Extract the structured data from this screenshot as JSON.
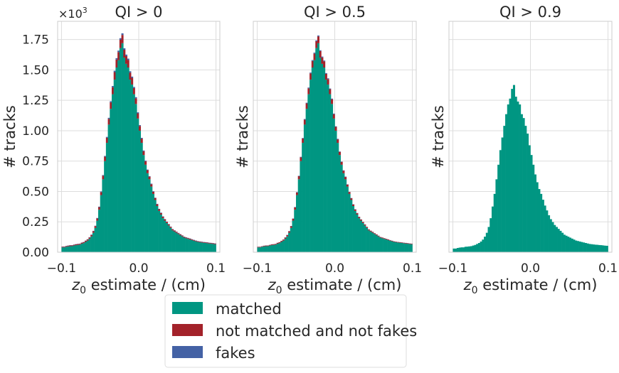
{
  "chart_data": {
    "type": "bar",
    "stacked": true,
    "grid": true,
    "legend_placement": "bottom-center",
    "colors": {
      "matched": "#009682",
      "not_matched": "#A3222A",
      "fakes": "#4462A5"
    },
    "legend": [
      "matched",
      "not matched and not fakes",
      "fakes"
    ],
    "y_multiplier_label": "×10",
    "y_multiplier_exp": "3",
    "ylabel": "# tracks",
    "xlabel_symbol": "z",
    "xlabel_sub": "0",
    "xlabel_rest": " estimate / (cm)",
    "xlim": [
      -0.105,
      0.105
    ],
    "ylim": [
      0,
      1.9
    ],
    "xticks": [
      "−0.1",
      "0.0",
      "0.1"
    ],
    "yticks": [
      "0.00",
      "0.25",
      "0.50",
      "0.75",
      "1.00",
      "1.25",
      "1.50",
      "1.75"
    ],
    "bin_range": [
      -0.1,
      0.1
    ],
    "bins": 80,
    "panels": [
      {
        "title": "QI > 0",
        "series": [
          {
            "name": "matched",
            "values": [
              0.04,
              0.04,
              0.045,
              0.048,
              0.05,
              0.05,
              0.055,
              0.058,
              0.06,
              0.062,
              0.07,
              0.075,
              0.085,
              0.095,
              0.11,
              0.13,
              0.16,
              0.2,
              0.26,
              0.35,
              0.47,
              0.6,
              0.75,
              0.9,
              1.05,
              1.18,
              1.3,
              1.42,
              1.52,
              1.58,
              1.68,
              1.72,
              1.6,
              1.55,
              1.52,
              1.42,
              1.38,
              1.3,
              1.22,
              1.1,
              1.0,
              0.9,
              0.8,
              0.72,
              0.65,
              0.6,
              0.54,
              0.48,
              0.43,
              0.38,
              0.34,
              0.31,
              0.28,
              0.26,
              0.24,
              0.22,
              0.2,
              0.18,
              0.17,
              0.16,
              0.15,
              0.14,
              0.13,
              0.12,
              0.115,
              0.11,
              0.105,
              0.1,
              0.095,
              0.09,
              0.085,
              0.082,
              0.08,
              0.078,
              0.076,
              0.074,
              0.072,
              0.07,
              0.068,
              0.066
            ]
          },
          {
            "name": "not matched and not fakes",
            "values": [
              0.005,
              0.005,
              0.005,
              0.006,
              0.006,
              0.006,
              0.006,
              0.007,
              0.007,
              0.007,
              0.008,
              0.008,
              0.009,
              0.01,
              0.011,
              0.012,
              0.013,
              0.015,
              0.018,
              0.021,
              0.025,
              0.03,
              0.036,
              0.042,
              0.048,
              0.053,
              0.058,
              0.062,
              0.065,
              0.067,
              0.068,
              0.068,
              0.066,
              0.064,
              0.062,
              0.058,
              0.055,
              0.051,
              0.047,
              0.043,
              0.039,
              0.035,
              0.031,
              0.028,
              0.025,
              0.022,
              0.02,
              0.018,
              0.016,
              0.015,
              0.014,
              0.013,
              0.012,
              0.011,
              0.01,
              0.01,
              0.009,
              0.009,
              0.008,
              0.008,
              0.007,
              0.007,
              0.007,
              0.006,
              0.006,
              0.006,
              0.006,
              0.005,
              0.005,
              0.005,
              0.005,
              0.005,
              0.005,
              0.005,
              0.005,
              0.005,
              0.005,
              0.005,
              0.005,
              0.005
            ]
          },
          {
            "name": "fakes",
            "values": [
              0.002,
              0.002,
              0.002,
              0.002,
              0.002,
              0.002,
              0.002,
              0.002,
              0.002,
              0.002,
              0.002,
              0.002,
              0.002,
              0.002,
              0.003,
              0.003,
              0.003,
              0.003,
              0.004,
              0.004,
              0.005,
              0.005,
              0.006,
              0.007,
              0.008,
              0.009,
              0.01,
              0.011,
              0.012,
              0.012,
              0.013,
              0.013,
              0.012,
              0.012,
              0.011,
              0.011,
              0.01,
              0.009,
              0.009,
              0.008,
              0.007,
              0.006,
              0.006,
              0.005,
              0.005,
              0.004,
              0.004,
              0.004,
              0.003,
              0.003,
              0.003,
              0.003,
              0.003,
              0.002,
              0.002,
              0.002,
              0.002,
              0.002,
              0.002,
              0.002,
              0.002,
              0.002,
              0.002,
              0.002,
              0.002,
              0.002,
              0.002,
              0.002,
              0.002,
              0.002,
              0.002,
              0.002,
              0.002,
              0.002,
              0.002,
              0.002,
              0.002,
              0.002,
              0.002,
              0.002
            ]
          }
        ]
      },
      {
        "title": "QI > 0.5",
        "series": [
          {
            "name": "matched",
            "values": [
              0.04,
              0.04,
              0.045,
              0.048,
              0.05,
              0.05,
              0.055,
              0.058,
              0.06,
              0.062,
              0.07,
              0.075,
              0.085,
              0.095,
              0.11,
              0.13,
              0.16,
              0.2,
              0.26,
              0.35,
              0.47,
              0.6,
              0.75,
              0.9,
              1.05,
              1.18,
              1.3,
              1.42,
              1.52,
              1.58,
              1.68,
              1.72,
              1.6,
              1.55,
              1.52,
              1.42,
              1.38,
              1.3,
              1.22,
              1.1,
              1.0,
              0.9,
              0.8,
              0.72,
              0.65,
              0.6,
              0.54,
              0.48,
              0.43,
              0.38,
              0.34,
              0.31,
              0.28,
              0.26,
              0.24,
              0.22,
              0.2,
              0.18,
              0.17,
              0.16,
              0.15,
              0.14,
              0.13,
              0.12,
              0.115,
              0.11,
              0.105,
              0.1,
              0.095,
              0.09,
              0.085,
              0.082,
              0.08,
              0.078,
              0.076,
              0.074,
              0.072,
              0.07,
              0.068,
              0.066
            ]
          },
          {
            "name": "not matched and not fakes",
            "values": [
              0.004,
              0.004,
              0.004,
              0.005,
              0.005,
              0.005,
              0.005,
              0.006,
              0.006,
              0.006,
              0.007,
              0.007,
              0.008,
              0.009,
              0.01,
              0.011,
              0.012,
              0.014,
              0.016,
              0.019,
              0.022,
              0.026,
              0.031,
              0.036,
              0.041,
              0.045,
              0.049,
              0.052,
              0.054,
              0.055,
              0.056,
              0.056,
              0.055,
              0.053,
              0.051,
              0.048,
              0.045,
              0.042,
              0.039,
              0.036,
              0.032,
              0.029,
              0.026,
              0.023,
              0.021,
              0.019,
              0.017,
              0.015,
              0.014,
              0.013,
              0.012,
              0.011,
              0.01,
              0.009,
              0.009,
              0.008,
              0.008,
              0.007,
              0.007,
              0.007,
              0.006,
              0.006,
              0.006,
              0.005,
              0.005,
              0.005,
              0.005,
              0.005,
              0.004,
              0.004,
              0.004,
              0.004,
              0.004,
              0.004,
              0.004,
              0.004,
              0.004,
              0.004,
              0.004,
              0.004
            ]
          },
          {
            "name": "fakes",
            "values": [
              0.001,
              0.001,
              0.001,
              0.001,
              0.001,
              0.001,
              0.001,
              0.001,
              0.001,
              0.001,
              0.001,
              0.001,
              0.001,
              0.001,
              0.002,
              0.002,
              0.002,
              0.002,
              0.002,
              0.003,
              0.003,
              0.003,
              0.004,
              0.004,
              0.005,
              0.005,
              0.006,
              0.006,
              0.007,
              0.007,
              0.007,
              0.007,
              0.007,
              0.007,
              0.006,
              0.006,
              0.006,
              0.005,
              0.005,
              0.005,
              0.004,
              0.004,
              0.003,
              0.003,
              0.003,
              0.003,
              0.002,
              0.002,
              0.002,
              0.002,
              0.002,
              0.002,
              0.002,
              0.001,
              0.001,
              0.001,
              0.001,
              0.001,
              0.001,
              0.001,
              0.001,
              0.001,
              0.001,
              0.001,
              0.001,
              0.001,
              0.001,
              0.001,
              0.001,
              0.001,
              0.001,
              0.001,
              0.001,
              0.001,
              0.001,
              0.001,
              0.001,
              0.001,
              0.001,
              0.001
            ]
          }
        ]
      },
      {
        "title": "QI > 0.9",
        "series": [
          {
            "name": "matched",
            "values": [
              0.03,
              0.03,
              0.035,
              0.038,
              0.04,
              0.04,
              0.045,
              0.046,
              0.048,
              0.05,
              0.055,
              0.06,
              0.068,
              0.076,
              0.088,
              0.104,
              0.128,
              0.16,
              0.208,
              0.28,
              0.376,
              0.48,
              0.6,
              0.72,
              0.84,
              0.944,
              1.04,
              1.136,
              1.216,
              1.264,
              1.344,
              1.376,
              1.28,
              1.24,
              1.216,
              1.136,
              1.104,
              1.04,
              0.976,
              0.88,
              0.8,
              0.72,
              0.64,
              0.576,
              0.52,
              0.48,
              0.432,
              0.384,
              0.344,
              0.304,
              0.272,
              0.248,
              0.224,
              0.208,
              0.192,
              0.176,
              0.16,
              0.144,
              0.136,
              0.128,
              0.12,
              0.112,
              0.104,
              0.096,
              0.092,
              0.088,
              0.084,
              0.08,
              0.076,
              0.072,
              0.068,
              0.066,
              0.064,
              0.062,
              0.061,
              0.059,
              0.058,
              0.056,
              0.054,
              0.053
            ]
          },
          {
            "name": "not matched and not fakes",
            "values": [
              0,
              0,
              0,
              0,
              0,
              0,
              0,
              0,
              0,
              0,
              0,
              0,
              0,
              0,
              0,
              0,
              0,
              0,
              0,
              0,
              0,
              0,
              0,
              0,
              0,
              0,
              0,
              0,
              0,
              0,
              0,
              0,
              0,
              0,
              0,
              0,
              0,
              0,
              0,
              0,
              0,
              0,
              0,
              0,
              0,
              0,
              0,
              0,
              0,
              0,
              0,
              0,
              0,
              0,
              0,
              0,
              0,
              0,
              0,
              0,
              0,
              0,
              0,
              0,
              0,
              0,
              0,
              0,
              0,
              0,
              0,
              0,
              0,
              0,
              0,
              0,
              0,
              0,
              0,
              0
            ]
          },
          {
            "name": "fakes",
            "values": [
              0,
              0,
              0,
              0,
              0,
              0,
              0,
              0,
              0,
              0,
              0,
              0,
              0,
              0,
              0,
              0,
              0,
              0,
              0,
              0,
              0,
              0,
              0,
              0,
              0,
              0,
              0,
              0,
              0,
              0,
              0,
              0,
              0,
              0,
              0,
              0,
              0,
              0,
              0,
              0,
              0,
              0,
              0,
              0,
              0,
              0,
              0,
              0,
              0,
              0,
              0,
              0,
              0,
              0,
              0,
              0,
              0,
              0,
              0,
              0,
              0,
              0,
              0,
              0,
              0,
              0,
              0,
              0,
              0,
              0,
              0,
              0,
              0,
              0,
              0,
              0,
              0,
              0,
              0,
              0
            ]
          }
        ]
      }
    ]
  }
}
